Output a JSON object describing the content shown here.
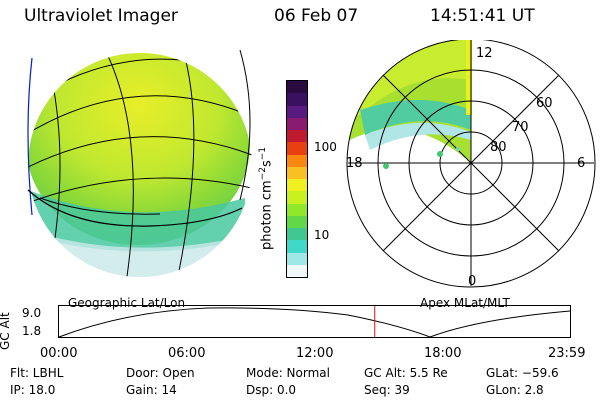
{
  "header": {
    "instrument": "Ultraviolet Imager",
    "date": "06 Feb 07",
    "time": "14:51:41 UT"
  },
  "colorbar": {
    "unit_label": "photon cm",
    "unit_exp1": "−2",
    "unit_s": "s",
    "unit_exp2": "−1",
    "ticks": [
      "100",
      "10"
    ],
    "colors": [
      "#2a0a40",
      "#3a1060",
      "#5a1a80",
      "#8a1a70",
      "#c01a30",
      "#e84010",
      "#f88810",
      "#f8c020",
      "#f0f020",
      "#c8f020",
      "#90e828",
      "#60d848",
      "#40c890",
      "#40d8c8",
      "#a0e8e8",
      "#f0f8f8"
    ]
  },
  "polar_plot": {
    "mlt_labels": [
      "12",
      "18",
      "6",
      "0"
    ],
    "mlat_labels": [
      "60",
      "70",
      "80"
    ]
  },
  "gc_alt_panel": {
    "ylabel": "GC Alt",
    "yticks": [
      "9.0",
      "1.8"
    ],
    "left_title": "Geographic Lat/Lon",
    "right_title": "Apex MLat/MLT",
    "time_ticks": [
      "00:00",
      "06:00",
      "12:00",
      "18:00",
      "23:59"
    ],
    "current_time_fraction": 0.6179
  },
  "footer": {
    "filter": "Flt: LBHL",
    "ip": "IP: 18.0",
    "door": "Door: Open",
    "gain": "Gain: 14",
    "mode": "Mode: Normal",
    "dsp": "Dsp:     0.0",
    "gc_alt": "GC Alt: 5.5 Re",
    "seq": "Seq: 39",
    "glat": "GLat: −59.6",
    "glon": "GLon:    2.8"
  }
}
